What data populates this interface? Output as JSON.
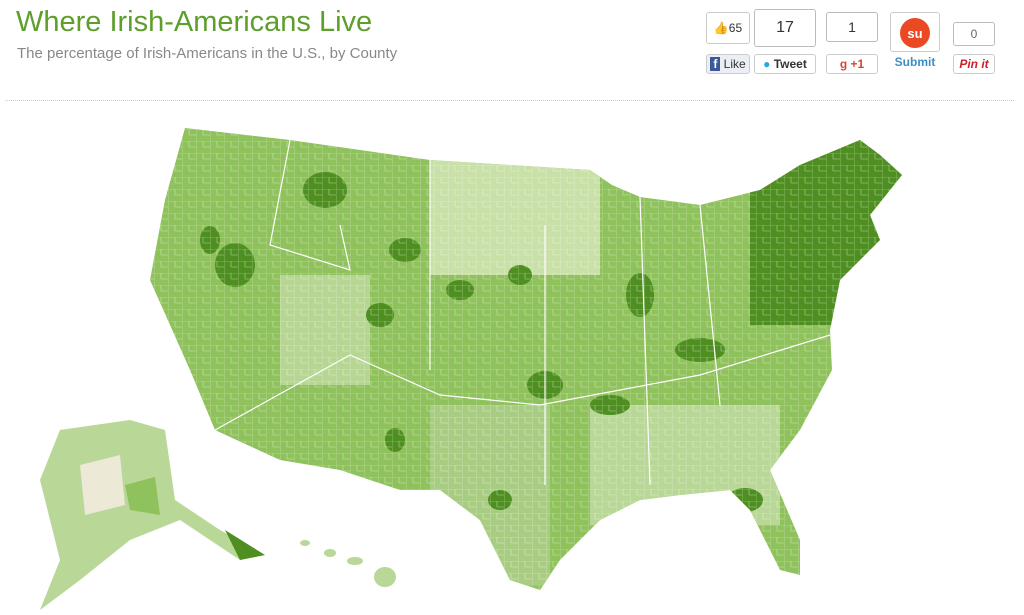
{
  "header": {
    "title": "Where Irish-Americans Live",
    "subtitle": "The percentage of Irish-Americans in the U.S., by County"
  },
  "social": {
    "facebook": {
      "count": 65,
      "label": "Like"
    },
    "twitter": {
      "count": 17,
      "label": "Tweet"
    },
    "google_plus": {
      "count": 1,
      "icon": "g",
      "label": "+1"
    },
    "stumbleupon": {
      "label": "Submit"
    },
    "pinterest": {
      "count": 0,
      "label": "Pin it"
    }
  }
}
